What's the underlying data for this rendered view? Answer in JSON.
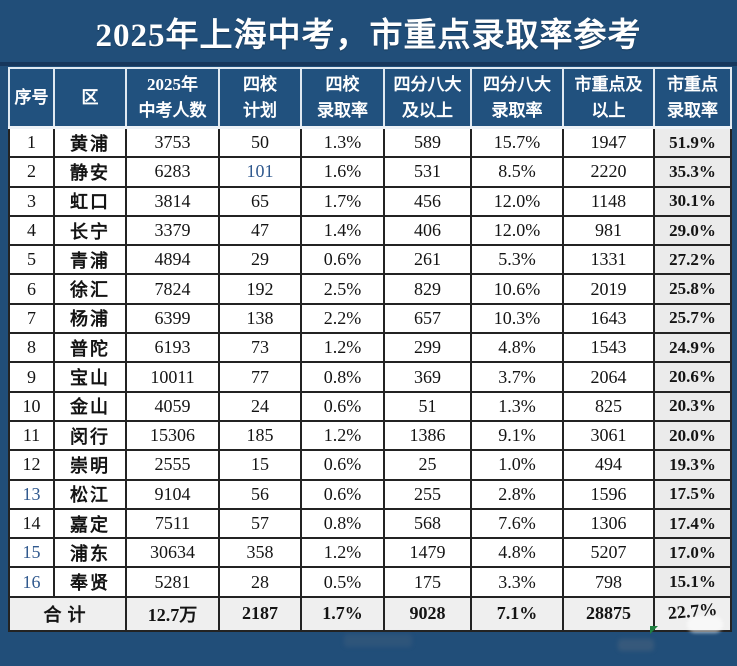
{
  "title": "2025年上海中考，市重点录取率参考",
  "colors": {
    "header_bg": "#21517E",
    "header_grid": "#DFE9F2",
    "body_grid": "#232323",
    "rate_column_bg": "#EBEBEB",
    "total_row_bg": "#EFEFEF",
    "blue_number_text": "#30598E",
    "corner_marker_green": "#1E8040"
  },
  "table": {
    "headers": [
      "序号",
      "区",
      "2025年\n中考人数",
      "四校\n计划",
      "四校\n录取率",
      "四分八大\n及以上",
      "四分八大\n录取率",
      "市重点及\n以上",
      "市重点\n录取率"
    ],
    "rows": [
      {
        "no": "1",
        "district": "黄浦",
        "candidates": "3753",
        "four_plan": "50",
        "four_rate": "1.3%",
        "big_above": "589",
        "big_rate": "15.7%",
        "key_above": "1947",
        "key_rate": "51.9%",
        "no_blue": false,
        "plan_blue": false
      },
      {
        "no": "2",
        "district": "静安",
        "candidates": "6283",
        "four_plan": "101",
        "four_rate": "1.6%",
        "big_above": "531",
        "big_rate": "8.5%",
        "key_above": "2220",
        "key_rate": "35.3%",
        "no_blue": false,
        "plan_blue": true
      },
      {
        "no": "3",
        "district": "虹口",
        "candidates": "3814",
        "four_plan": "65",
        "four_rate": "1.7%",
        "big_above": "456",
        "big_rate": "12.0%",
        "key_above": "1148",
        "key_rate": "30.1%",
        "no_blue": false,
        "plan_blue": false
      },
      {
        "no": "4",
        "district": "长宁",
        "candidates": "3379",
        "four_plan": "47",
        "four_rate": "1.4%",
        "big_above": "406",
        "big_rate": "12.0%",
        "key_above": "981",
        "key_rate": "29.0%",
        "no_blue": false,
        "plan_blue": false
      },
      {
        "no": "5",
        "district": "青浦",
        "candidates": "4894",
        "four_plan": "29",
        "four_rate": "0.6%",
        "big_above": "261",
        "big_rate": "5.3%",
        "key_above": "1331",
        "key_rate": "27.2%",
        "no_blue": false,
        "plan_blue": false
      },
      {
        "no": "6",
        "district": "徐汇",
        "candidates": "7824",
        "four_plan": "192",
        "four_rate": "2.5%",
        "big_above": "829",
        "big_rate": "10.6%",
        "key_above": "2019",
        "key_rate": "25.8%",
        "no_blue": false,
        "plan_blue": false
      },
      {
        "no": "7",
        "district": "杨浦",
        "candidates": "6399",
        "four_plan": "138",
        "four_rate": "2.2%",
        "big_above": "657",
        "big_rate": "10.3%",
        "key_above": "1643",
        "key_rate": "25.7%",
        "no_blue": false,
        "plan_blue": false
      },
      {
        "no": "8",
        "district": "普陀",
        "candidates": "6193",
        "four_plan": "73",
        "four_rate": "1.2%",
        "big_above": "299",
        "big_rate": "4.8%",
        "key_above": "1543",
        "key_rate": "24.9%",
        "no_blue": false,
        "plan_blue": false
      },
      {
        "no": "9",
        "district": "宝山",
        "candidates": "10011",
        "four_plan": "77",
        "four_rate": "0.8%",
        "big_above": "369",
        "big_rate": "3.7%",
        "key_above": "2064",
        "key_rate": "20.6%",
        "no_blue": false,
        "plan_blue": false
      },
      {
        "no": "10",
        "district": "金山",
        "candidates": "4059",
        "four_plan": "24",
        "four_rate": "0.6%",
        "big_above": "51",
        "big_rate": "1.3%",
        "key_above": "825",
        "key_rate": "20.3%",
        "no_blue": false,
        "plan_blue": false
      },
      {
        "no": "11",
        "district": "闵行",
        "candidates": "15306",
        "four_plan": "185",
        "four_rate": "1.2%",
        "big_above": "1386",
        "big_rate": "9.1%",
        "key_above": "3061",
        "key_rate": "20.0%",
        "no_blue": false,
        "plan_blue": false
      },
      {
        "no": "12",
        "district": "崇明",
        "candidates": "2555",
        "four_plan": "15",
        "four_rate": "0.6%",
        "big_above": "25",
        "big_rate": "1.0%",
        "key_above": "494",
        "key_rate": "19.3%",
        "no_blue": false,
        "plan_blue": false
      },
      {
        "no": "13",
        "district": "松江",
        "candidates": "9104",
        "four_plan": "56",
        "four_rate": "0.6%",
        "big_above": "255",
        "big_rate": "2.8%",
        "key_above": "1596",
        "key_rate": "17.5%",
        "no_blue": true,
        "plan_blue": false
      },
      {
        "no": "14",
        "district": "嘉定",
        "candidates": "7511",
        "four_plan": "57",
        "four_rate": "0.8%",
        "big_above": "568",
        "big_rate": "7.6%",
        "key_above": "1306",
        "key_rate": "17.4%",
        "no_blue": false,
        "plan_blue": false
      },
      {
        "no": "15",
        "district": "浦东",
        "candidates": "30634",
        "four_plan": "358",
        "four_rate": "1.2%",
        "big_above": "1479",
        "big_rate": "4.8%",
        "key_above": "5207",
        "key_rate": "17.0%",
        "no_blue": true,
        "plan_blue": false
      },
      {
        "no": "16",
        "district": "奉贤",
        "candidates": "5281",
        "four_plan": "28",
        "four_rate": "0.5%",
        "big_above": "175",
        "big_rate": "3.3%",
        "key_above": "798",
        "key_rate": "15.1%",
        "no_blue": true,
        "plan_blue": false
      }
    ],
    "total": {
      "label": "合计",
      "candidates": "12.7万",
      "four_plan": "2187",
      "four_rate": "1.7%",
      "big_above": "9028",
      "big_rate": "7.1%",
      "key_above": "28875",
      "key_rate": "22.7%"
    }
  }
}
